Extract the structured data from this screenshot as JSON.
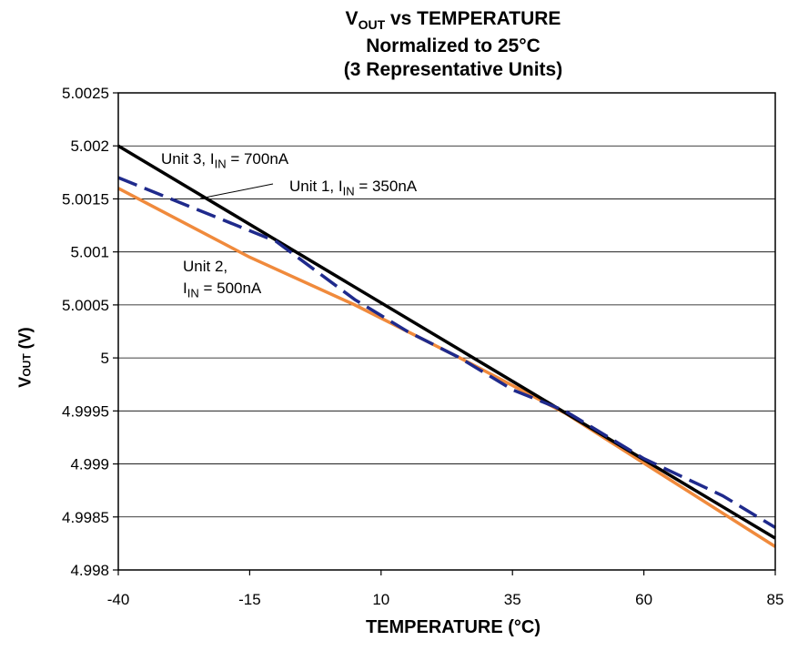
{
  "chart_data": {
    "type": "line",
    "title_line1_main": "V",
    "title_line1_sub": "OUT",
    "title_line1_rest": " vs TEMPERATURE",
    "title_line2": "Normalized to 25°C",
    "title_line3": "(3 Representative Units)",
    "xlabel": "TEMPERATURE (°C)",
    "ylabel_main": "V",
    "ylabel_sub": "OUT",
    "ylabel_rest": " (V)",
    "xlim": [
      -40,
      85
    ],
    "ylim": [
      4.998,
      5.0025
    ],
    "x_ticks": [
      "-40",
      "-15",
      "10",
      "35",
      "60",
      "85"
    ],
    "x_tick_values": [
      -40,
      -15,
      10,
      35,
      60,
      85
    ],
    "y_ticks": [
      "4.998",
      "4.9985",
      "4.999",
      "4.9995",
      "5",
      "5.0005",
      "5.001",
      "5.0015",
      "5.002",
      "5.0025"
    ],
    "y_tick_values": [
      4.998,
      4.9985,
      4.999,
      4.9995,
      5.0,
      5.0005,
      5.001,
      5.0015,
      5.002,
      5.0025
    ],
    "grid": "horizontal",
    "series": [
      {
        "color": "#000000",
        "style": "solid",
        "x": [
          -40,
          85
        ],
        "y": [
          5.002,
          4.9983
        ]
      },
      {
        "color": "#1f2a8c",
        "style": "dashed",
        "x": [
          -40,
          -25,
          -10,
          5,
          15,
          25,
          35,
          45,
          60,
          75,
          85
        ],
        "y": [
          5.0017,
          5.0014,
          5.0011,
          5.00055,
          5.00025,
          5.0,
          4.9997,
          4.9995,
          4.99905,
          4.9987,
          4.9984
        ]
      },
      {
        "color": "#f08a3c",
        "style": "solid",
        "x": [
          -40,
          -15,
          5,
          25,
          45,
          65,
          85
        ],
        "y": [
          5.0016,
          5.00095,
          5.0005,
          5.0,
          4.99948,
          4.99885,
          4.99822
        ]
      }
    ],
    "annotations": [
      {
        "main": "Unit 3, I",
        "sub": "IN",
        "rest": " = 700nA"
      },
      {
        "main": "Unit 1, I",
        "sub": "IN",
        "rest": " = 350nA"
      },
      {
        "main": "Unit 2,",
        "sub": "",
        "rest": ""
      },
      {
        "main": "I",
        "sub": "IN",
        "rest": " = 500nA"
      }
    ]
  }
}
